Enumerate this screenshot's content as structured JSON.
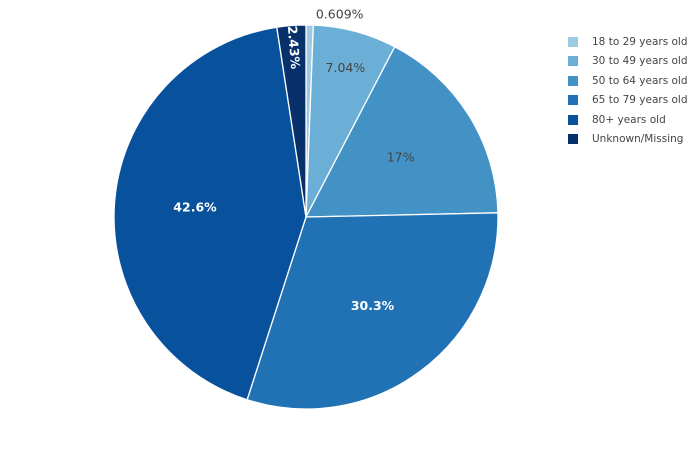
{
  "chart_data": {
    "type": "pie",
    "title": "",
    "legend_position": "top-right",
    "categories": [
      "18 to 29 years old",
      "30 to 49 years old",
      "50 to 64 years old",
      "65 to 79 years old",
      "80+ years old",
      "Unknown/Missing"
    ],
    "values": [
      0.609,
      7.04,
      17,
      30.3,
      42.6,
      2.43
    ],
    "data_labels": [
      "0.609%",
      "7.04%",
      "17%",
      "30.3%",
      "42.6%",
      "2.43%"
    ],
    "colors": [
      "#9ecae1",
      "#6baed6",
      "#4292c6",
      "#2171b5",
      "#08519c",
      "#08306b"
    ],
    "start": "top, clockwise"
  },
  "legend": {
    "items": [
      {
        "label": "18 to 29 years old",
        "color": "#9ecae1"
      },
      {
        "label": "30 to 49 years old",
        "color": "#6baed6"
      },
      {
        "label": "50 to 64 years old",
        "color": "#4292c6"
      },
      {
        "label": "65 to 79 years old",
        "color": "#2171b5"
      },
      {
        "label": "80+ years old",
        "color": "#08519c"
      },
      {
        "label": "Unknown/Missing",
        "color": "#08306b"
      }
    ]
  }
}
